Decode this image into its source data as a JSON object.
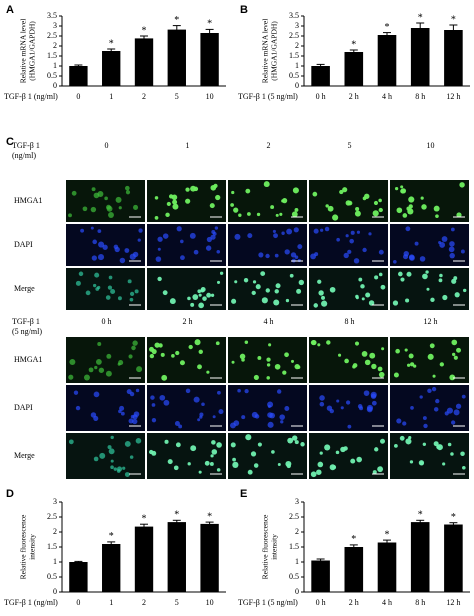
{
  "chart_data": [
    {
      "type": "bar",
      "panel": "A",
      "x_label": "TGF-β 1 (ng/ml)",
      "y_label": [
        "Relative mRNA level",
        "(HMGA1/GAPDH)"
      ],
      "categories": [
        "0",
        "1",
        "2",
        "5",
        "10"
      ],
      "values": [
        1.0,
        1.75,
        2.38,
        2.82,
        2.65
      ],
      "errors": [
        0.05,
        0.1,
        0.12,
        0.2,
        0.18
      ],
      "significance": [
        null,
        "*",
        "*",
        "*",
        "*"
      ],
      "color": "#000000",
      "ylim": [
        0,
        3.5
      ],
      "yticks": [
        0,
        0.5,
        1,
        1.5,
        2,
        2.5,
        3,
        3.5
      ]
    },
    {
      "type": "bar",
      "panel": "B",
      "x_label": "TGF-β 1 (5 ng/ml)",
      "y_label": [
        "Relative mRNA level",
        "(HMGA1/GAPDH)"
      ],
      "categories": [
        "0 h",
        "2 h",
        "4 h",
        "8 h",
        "12 h"
      ],
      "values": [
        1.0,
        1.7,
        2.55,
        2.9,
        2.8
      ],
      "errors": [
        0.08,
        0.1,
        0.12,
        0.25,
        0.25
      ],
      "significance": [
        null,
        "*",
        "*",
        "*",
        "*"
      ],
      "color": "#000000",
      "ylim": [
        0,
        3.5
      ],
      "yticks": [
        0,
        0.5,
        1,
        1.5,
        2,
        2.5,
        3,
        3.5
      ]
    },
    {
      "type": "bar",
      "panel": "D",
      "x_label": "TGF-β 1 (ng/ml)",
      "y_label": [
        "Relative fluorescence",
        "intensity"
      ],
      "categories": [
        "0",
        "1",
        "2",
        "5",
        "10"
      ],
      "values": [
        1.0,
        1.6,
        2.18,
        2.33,
        2.27
      ],
      "errors": [
        0.02,
        0.07,
        0.08,
        0.06,
        0.06
      ],
      "significance": [
        null,
        "*",
        "*",
        "*",
        "*"
      ],
      "color": "#000000",
      "ylim": [
        0,
        3
      ],
      "yticks": [
        0,
        0.5,
        1,
        1.5,
        2,
        2.5,
        3
      ]
    },
    {
      "type": "bar",
      "panel": "E",
      "x_label": "TGF-β 1 (5 ng/ml)",
      "y_label": [
        "Relative fluorescence",
        "intensity"
      ],
      "categories": [
        "0 h",
        "2 h",
        "4 h",
        "8 h",
        "12 h"
      ],
      "values": [
        1.05,
        1.5,
        1.65,
        2.33,
        2.25
      ],
      "errors": [
        0.05,
        0.07,
        0.08,
        0.06,
        0.06
      ],
      "significance": [
        null,
        "*",
        "*",
        "*",
        "*"
      ],
      "color": "#000000",
      "ylim": [
        0,
        3
      ],
      "yticks": [
        0,
        0.5,
        1,
        1.5,
        2,
        2.5,
        3
      ]
    }
  ],
  "panel_c": {
    "label": "C",
    "blocks": [
      {
        "treatment": [
          "TGF-β 1",
          "(ng/ml)"
        ],
        "columns": [
          "0",
          "1",
          "2",
          "5",
          "10"
        ],
        "rows": [
          "HMGA1",
          "DAPI",
          "Merge"
        ]
      },
      {
        "treatment": [
          "TGF-β 1",
          "(5 ng/ml)"
        ],
        "columns": [
          "0 h",
          "2 h",
          "4 h",
          "8 h",
          "12 h"
        ],
        "rows": [
          "HMGA1",
          "DAPI",
          "Merge"
        ]
      }
    ]
  }
}
